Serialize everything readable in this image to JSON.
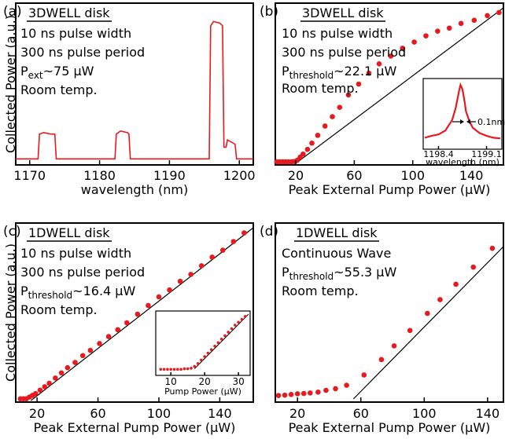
{
  "chart_data": [
    {
      "panel": "(a)",
      "type": "line",
      "title": "3DWELL disk",
      "annotations": [
        "10 ns pulse width",
        "300 ns pulse period",
        "Room temp."
      ],
      "param": {
        "main": "P",
        "sub": "ext",
        "rest": "~75 µW"
      },
      "xlabel": "wavelength (nm)",
      "ylabel": "Collected Power (a.u.)",
      "xlim": [
        1168,
        1202
      ],
      "ylim": [
        0,
        1.0
      ],
      "xticks": [
        1170,
        1180,
        1190,
        1200
      ],
      "series": [
        {
          "x": [
            1168,
            1171.2,
            1171.4,
            1172,
            1173,
            1173.6,
            1173.8,
            1182.2,
            1182.4,
            1183,
            1184,
            1184.2,
            1184.4,
            1195.7,
            1195.9,
            1196.3,
            1197.2,
            1197.6,
            1197.8,
            1198.1,
            1198.3,
            1199.4,
            1199.6,
            1202
          ],
          "y": [
            0.02,
            0.02,
            0.19,
            0.2,
            0.19,
            0.19,
            0.02,
            0.02,
            0.19,
            0.21,
            0.2,
            0.19,
            0.02,
            0.02,
            0.93,
            0.96,
            0.95,
            0.93,
            0.1,
            0.1,
            0.15,
            0.12,
            0.02,
            0.02
          ]
        }
      ],
      "color": "#e8191f"
    },
    {
      "panel": "(b)",
      "type": "scatter",
      "title": "3DWELL disk",
      "annotations": [
        "10 ns pulse width",
        "300 ns pulse period",
        "Room temp."
      ],
      "param": {
        "main": "P",
        "sub": "threshold",
        "rest": "~22.1 µW"
      },
      "xlabel": "Peak External Pump Power (µW)",
      "xlim": [
        6,
        162
      ],
      "ylim": [
        0,
        1.0
      ],
      "xticks": [
        20,
        60,
        100,
        140
      ],
      "x": [
        7,
        9,
        11,
        13,
        15,
        17,
        19,
        21,
        23,
        25,
        28,
        31,
        35,
        40,
        45,
        50,
        56,
        63,
        70,
        77,
        85,
        93,
        101,
        109,
        117,
        125,
        133,
        142,
        151,
        159
      ],
      "y": [
        0.01,
        0.01,
        0.01,
        0.01,
        0.01,
        0.01,
        0.012,
        0.02,
        0.04,
        0.06,
        0.09,
        0.13,
        0.18,
        0.24,
        0.3,
        0.36,
        0.44,
        0.51,
        0.58,
        0.64,
        0.69,
        0.74,
        0.78,
        0.82,
        0.85,
        0.87,
        0.9,
        0.92,
        0.95,
        0.97
      ],
      "fit": {
        "x": [
          20,
          162
        ],
        "y": [
          0.0,
          1.0
        ]
      },
      "inset": {
        "type": "line",
        "xlabel": "wavelength (nm)",
        "xticks": [
          1198.4,
          1199.1
        ],
        "xlim": [
          1198.2,
          1199.3
        ],
        "annotation": "0.1nm",
        "x": [
          1198.2,
          1198.3,
          1198.4,
          1198.5,
          1198.6,
          1198.65,
          1198.7,
          1198.72,
          1198.75,
          1198.78,
          1198.8,
          1198.85,
          1198.9,
          1199.0,
          1199.1,
          1199.2,
          1199.3
        ],
        "y": [
          0.15,
          0.18,
          0.2,
          0.26,
          0.42,
          0.6,
          0.86,
          0.95,
          0.88,
          0.7,
          0.55,
          0.4,
          0.3,
          0.22,
          0.18,
          0.15,
          0.14
        ]
      },
      "color": "#e8191f"
    },
    {
      "panel": "(c)",
      "type": "scatter",
      "title": "1DWELL disk",
      "annotations": [
        "10 ns pulse width",
        "300 ns pulse period",
        "Room temp."
      ],
      "param": {
        "main": "P",
        "sub": "threshold",
        "rest": "~16.4 µW"
      },
      "xlabel": "Peak External Pump Power (µW)",
      "ylabel": "Collected Power (a.u.)",
      "xlim": [
        6,
        162
      ],
      "ylim": [
        0,
        1.0
      ],
      "xticks": [
        20,
        60,
        100,
        140
      ],
      "x": [
        9,
        11,
        13,
        15,
        17,
        19,
        22,
        25,
        28,
        32,
        36,
        40,
        45,
        50,
        55,
        61,
        67,
        73,
        79,
        86,
        93,
        100,
        107,
        114,
        121,
        128,
        135,
        142,
        149,
        156
      ],
      "y": [
        0.01,
        0.01,
        0.01,
        0.02,
        0.03,
        0.04,
        0.06,
        0.08,
        0.1,
        0.13,
        0.16,
        0.19,
        0.22,
        0.26,
        0.29,
        0.33,
        0.37,
        0.41,
        0.45,
        0.5,
        0.55,
        0.6,
        0.64,
        0.69,
        0.73,
        0.78,
        0.83,
        0.87,
        0.92,
        0.97
      ],
      "fit": {
        "x": [
          16,
          162
        ],
        "y": [
          0.0,
          1.0
        ]
      },
      "inset": {
        "type": "scatter",
        "xlabel": "Pump Power (µW)",
        "xticks": [
          10,
          20,
          30
        ],
        "xlim": [
          6,
          33
        ],
        "x": [
          7,
          8,
          9,
          10,
          11,
          12,
          13,
          14,
          15,
          16,
          17,
          18,
          19,
          20,
          21,
          22,
          23,
          24,
          25,
          26,
          27,
          28,
          29,
          30,
          31,
          32
        ],
        "y": [
          0.05,
          0.05,
          0.05,
          0.05,
          0.05,
          0.05,
          0.05,
          0.06,
          0.06,
          0.07,
          0.1,
          0.15,
          0.21,
          0.27,
          0.33,
          0.39,
          0.45,
          0.51,
          0.57,
          0.63,
          0.69,
          0.75,
          0.81,
          0.86,
          0.91,
          0.96
        ]
      },
      "color": "#e8191f"
    },
    {
      "panel": "(d)",
      "type": "scatter",
      "title": "1DWELL disk",
      "annotations": [
        "Continuous Wave",
        "Room temp."
      ],
      "param": {
        "main": "P",
        "sub": "threshold",
        "rest": "~55.3 µW"
      },
      "xlabel": "Peak External Pump Power (µW)",
      "xlim": [
        6,
        150
      ],
      "ylim": [
        0,
        1.0
      ],
      "xticks": [
        20,
        60,
        100,
        140
      ],
      "x": [
        8,
        12,
        16,
        20,
        24,
        28,
        33,
        38,
        44,
        51,
        62,
        73,
        81,
        91,
        102,
        110,
        120,
        131,
        143
      ],
      "y": [
        0.02,
        0.022,
        0.026,
        0.03,
        0.032,
        0.035,
        0.04,
        0.05,
        0.06,
        0.08,
        0.14,
        0.23,
        0.31,
        0.4,
        0.5,
        0.58,
        0.67,
        0.77,
        0.88
      ],
      "fit": {
        "x": [
          55.3,
          150
        ],
        "y": [
          0.0,
          0.89
        ]
      },
      "color": "#e8191f"
    }
  ]
}
